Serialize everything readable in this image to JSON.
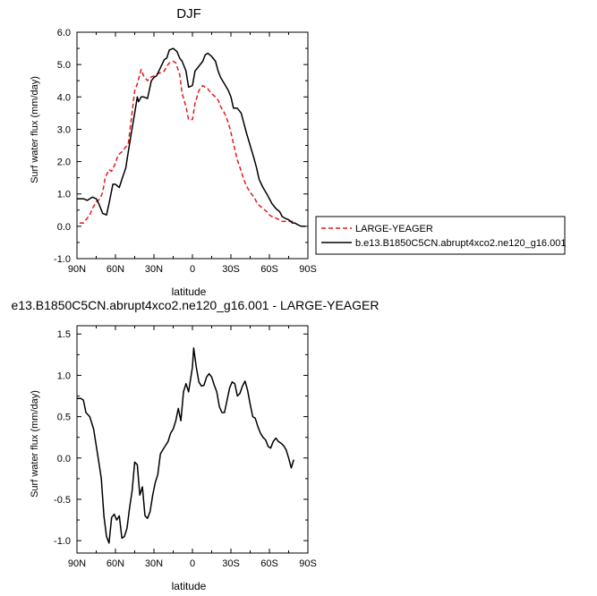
{
  "chart_data": [
    {
      "type": "line",
      "title": "DJF",
      "xlabel": "latitude",
      "ylabel": "Surf water flux (mm/day)",
      "xlim": [
        -90,
        90
      ],
      "ylim": [
        -1.0,
        6.0
      ],
      "x_ticks": [
        -90,
        -60,
        -30,
        0,
        30,
        60,
        90
      ],
      "x_tick_labels": [
        "90N",
        "60N",
        "30N",
        "0",
        "30S",
        "60S",
        "90S"
      ],
      "y_ticks": [
        -1,
        0,
        1,
        2,
        3,
        4,
        5,
        6
      ],
      "y_tick_labels": [
        "-1.0",
        "0.0",
        "1.0",
        "2.0",
        "3.0",
        "4.0",
        "5.0",
        "6.0"
      ],
      "legend_placement": "right, outside plot",
      "grid": false,
      "series": [
        {
          "name": "LARGE-YEAGER",
          "color": "#e41a1c",
          "dash": "dashed",
          "x": [
            -88,
            -85,
            -82,
            -80,
            -78,
            -75,
            -72,
            -70,
            -68,
            -65,
            -63,
            -60,
            -58,
            -55,
            -53,
            -50,
            -48,
            -45,
            -43,
            -40,
            -38,
            -35,
            -33,
            -30,
            -28,
            -25,
            -22,
            -20,
            -18,
            -15,
            -13,
            -10,
            -8,
            -5,
            -3,
            0,
            2,
            5,
            8,
            10,
            12,
            15,
            18,
            20,
            22,
            25,
            28,
            30,
            32,
            35,
            38,
            40,
            42,
            45,
            48,
            50,
            52,
            55,
            58,
            60,
            62,
            65,
            68,
            70,
            72,
            75,
            78,
            80
          ],
          "y": [
            0.1,
            0.1,
            0.25,
            0.35,
            0.55,
            0.75,
            0.85,
            1.05,
            1.5,
            1.75,
            1.7,
            1.95,
            2.2,
            2.3,
            2.4,
            2.55,
            3.2,
            4.2,
            4.4,
            4.85,
            4.65,
            4.5,
            4.6,
            4.65,
            4.7,
            4.75,
            4.8,
            4.95,
            5.05,
            5.1,
            5.05,
            4.7,
            4.1,
            3.7,
            3.3,
            3.3,
            3.8,
            4.2,
            4.35,
            4.3,
            4.25,
            4.1,
            4.0,
            3.9,
            3.7,
            3.5,
            3.2,
            2.9,
            2.55,
            2.05,
            1.7,
            1.45,
            1.25,
            1.05,
            0.9,
            0.75,
            0.65,
            0.55,
            0.45,
            0.35,
            0.3,
            0.25,
            0.2,
            0.15,
            0.15,
            0.15,
            0.15,
            0.1
          ]
        },
        {
          "name": "b.e13.B1850C5CN.abrupt4xco2.ne120_g16.001",
          "color": "#000000",
          "dash": "solid",
          "x": [
            -90,
            -87,
            -85,
            -82,
            -80,
            -78,
            -75,
            -73,
            -70,
            -67,
            -65,
            -62,
            -60,
            -57,
            -55,
            -52,
            -50,
            -48,
            -45,
            -43,
            -42,
            -40,
            -38,
            -35,
            -32,
            -30,
            -28,
            -25,
            -22,
            -20,
            -18,
            -15,
            -12,
            -10,
            -8,
            -5,
            -3,
            0,
            2,
            5,
            8,
            10,
            12,
            15,
            18,
            20,
            22,
            25,
            28,
            30,
            32,
            35,
            38,
            40,
            42,
            45,
            48,
            50,
            52,
            55,
            58,
            60,
            62,
            65,
            68,
            70,
            72,
            75,
            78,
            80,
            82,
            85,
            88
          ],
          "y": [
            0.85,
            0.85,
            0.85,
            0.8,
            0.85,
            0.9,
            0.85,
            0.7,
            0.4,
            0.35,
            0.7,
            1.3,
            1.3,
            1.2,
            1.45,
            1.8,
            2.3,
            2.8,
            3.5,
            4.0,
            3.85,
            4.0,
            4.0,
            3.95,
            4.5,
            4.6,
            4.65,
            4.9,
            5.15,
            5.2,
            5.45,
            5.5,
            5.4,
            5.2,
            5.1,
            4.8,
            4.3,
            4.35,
            4.8,
            4.95,
            5.1,
            5.3,
            5.35,
            5.25,
            5.1,
            4.8,
            4.6,
            4.4,
            4.2,
            4.0,
            3.65,
            3.65,
            3.5,
            3.2,
            2.9,
            2.5,
            2.1,
            1.8,
            1.45,
            1.2,
            1.0,
            0.85,
            0.7,
            0.55,
            0.45,
            0.3,
            0.25,
            0.2,
            0.1,
            0.1,
            0.05,
            0.0,
            0.0
          ]
        }
      ]
    },
    {
      "type": "line",
      "title": "e13.B1850C5CN.abrupt4xco2.ne120_g16.001 - LARGE-YEAGER",
      "xlabel": "latitude",
      "ylabel": "Surf water flux (mm/day)",
      "xlim": [
        -90,
        90
      ],
      "ylim": [
        -1.15,
        1.6
      ],
      "x_ticks": [
        -90,
        -60,
        -30,
        0,
        30,
        60,
        90
      ],
      "x_tick_labels": [
        "90N",
        "60N",
        "30N",
        "0",
        "30S",
        "60S",
        "90S"
      ],
      "y_ticks": [
        -1.0,
        -0.5,
        0.0,
        0.5,
        1.0,
        1.5
      ],
      "y_tick_labels": [
        "-1.0",
        "-0.5",
        "0.0",
        "0.5",
        "1.0",
        "1.5"
      ],
      "grid": false,
      "series": [
        {
          "color": "#000000",
          "dash": "solid",
          "x": [
            -90,
            -87,
            -85,
            -83,
            -80,
            -77,
            -75,
            -73,
            -71,
            -69,
            -67,
            -65,
            -63,
            -61,
            -59,
            -57,
            -55,
            -53,
            -51,
            -49,
            -47,
            -45,
            -43,
            -41,
            -39,
            -37,
            -35,
            -33,
            -31,
            -29,
            -27,
            -25,
            -23,
            -21,
            -19,
            -17,
            -15,
            -13,
            -11,
            -9,
            -7,
            -5,
            -3,
            -1,
            0,
            1,
            3,
            5,
            7,
            9,
            11,
            13,
            15,
            17,
            19,
            21,
            23,
            25,
            27,
            29,
            31,
            33,
            35,
            37,
            39,
            41,
            43,
            45,
            47,
            49,
            51,
            53,
            55,
            57,
            59,
            61,
            63,
            65,
            67,
            69,
            71,
            73,
            75,
            77,
            79
          ],
          "y": [
            0.72,
            0.72,
            0.7,
            0.55,
            0.5,
            0.35,
            0.15,
            -0.05,
            -0.25,
            -0.7,
            -0.95,
            -1.03,
            -0.72,
            -0.68,
            -0.75,
            -0.7,
            -0.97,
            -0.95,
            -0.85,
            -0.6,
            -0.4,
            -0.05,
            -0.08,
            -0.45,
            -0.35,
            -0.7,
            -0.73,
            -0.65,
            -0.45,
            -0.3,
            -0.2,
            0.05,
            0.1,
            0.15,
            0.2,
            0.3,
            0.35,
            0.45,
            0.6,
            0.45,
            0.8,
            0.9,
            0.8,
            1.0,
            1.1,
            1.33,
            1.1,
            0.92,
            0.87,
            0.88,
            0.98,
            1.02,
            0.98,
            0.88,
            0.8,
            0.62,
            0.55,
            0.55,
            0.7,
            0.85,
            0.92,
            0.9,
            0.75,
            0.78,
            0.87,
            0.93,
            0.82,
            0.65,
            0.5,
            0.48,
            0.38,
            0.3,
            0.25,
            0.22,
            0.14,
            0.12,
            0.2,
            0.24,
            0.2,
            0.18,
            0.15,
            0.1,
            0.0,
            -0.12,
            -0.02
          ]
        }
      ]
    }
  ]
}
